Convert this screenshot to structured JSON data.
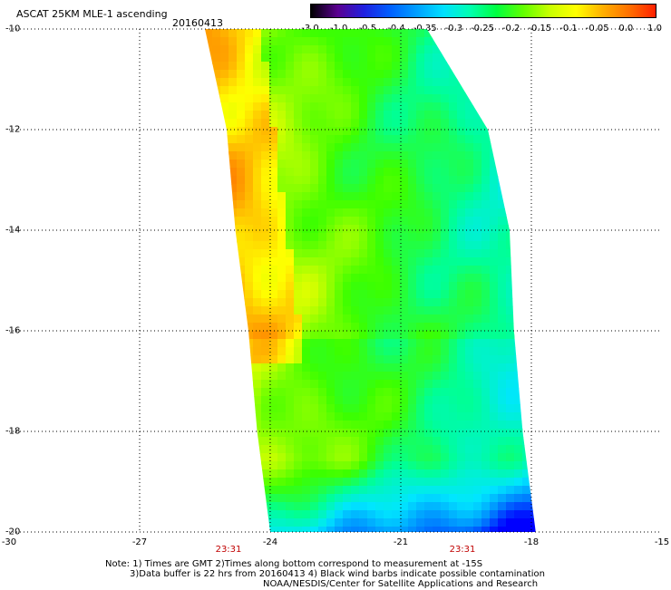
{
  "header": {
    "title": "ASCAT 25KM MLE-1 ascending",
    "date": "20160413"
  },
  "colorbar": {
    "labels": [
      "-3.0",
      "-1.0",
      "-0.5",
      "-0.4",
      "-0.35",
      "-0.3",
      "-0.25",
      "-0.2",
      "-0.15",
      "-0.1",
      "-0.05",
      "0.0",
      "1.0"
    ],
    "colors": [
      "#000000",
      "#5a0090",
      "#2020e0",
      "#0060ff",
      "#00a0ff",
      "#00e0ff",
      "#00ffb0",
      "#00ff40",
      "#60ff00",
      "#c8ff00",
      "#ffff00",
      "#ffb000",
      "#ff7000",
      "#ff2000"
    ]
  },
  "axes": {
    "lon_ticks": [
      "-30",
      "-27",
      "-24",
      "-21",
      "-18",
      "-15"
    ],
    "lat_ticks": [
      "-10",
      "-12",
      "-14",
      "-16",
      "-18",
      "-20"
    ],
    "pass_times": [
      "23:31",
      "23:31"
    ]
  },
  "map_data": {
    "lon_range": [
      -30,
      -15
    ],
    "lat_range": [
      -20,
      -10
    ],
    "swath_edges": [
      {
        "lat": -10.0,
        "lon_left": -25.5,
        "lon_right": -20.4
      },
      {
        "lat": -12.0,
        "lon_left": -25.0,
        "lon_right": -19.0
      },
      {
        "lat": -14.0,
        "lon_left": -24.8,
        "lon_right": -18.5
      },
      {
        "lat": -16.0,
        "lon_left": -24.5,
        "lon_right": -18.4
      },
      {
        "lat": -18.0,
        "lon_left": -24.3,
        "lon_right": -18.2
      },
      {
        "lat": -20.0,
        "lon_left": -24.0,
        "lon_right": -17.9
      }
    ],
    "values_note": "MLE-1 field: high values near western edge, decreasing toward south"
  },
  "footer": {
    "line1": "Note: 1) Times are GMT 2)Times along bottom correspond to measurement at -15S",
    "line2": "3)Data buffer is 22 hrs from 20160413 4) Black wind barbs indicate possible contamination",
    "line3": "NOAA/NESDIS/Center for Satellite Applications and Research"
  }
}
